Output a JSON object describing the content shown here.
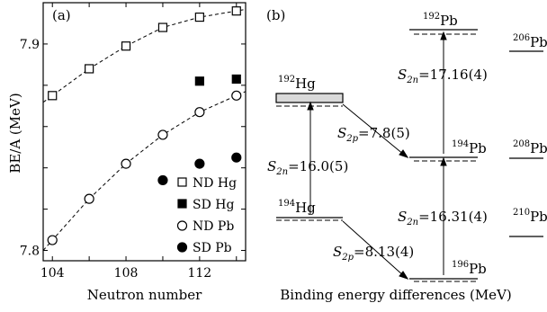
{
  "chart_data": [
    {
      "type": "scatter",
      "panel_label": "(a)",
      "xlabel": "Neutron number",
      "ylabel": "BE/A (MeV)",
      "xlim": [
        103.5,
        114.5
      ],
      "ylim": [
        7.795,
        7.92
      ],
      "xticks": [
        104,
        108,
        112
      ],
      "xticklabels": [
        "104",
        "108",
        "112"
      ],
      "yticks": [
        7.8,
        7.9
      ],
      "yticklabels": [
        "7.8",
        "7.9"
      ],
      "legend_position": "bottom-right",
      "series": [
        {
          "name": "ND Hg",
          "marker": "open-square",
          "connected": true,
          "x": [
            104,
            106,
            108,
            110,
            112,
            114
          ],
          "y": [
            7.875,
            7.888,
            7.899,
            7.908,
            7.913,
            7.916
          ]
        },
        {
          "name": "SD Hg",
          "marker": "filled-square",
          "connected": false,
          "x": [
            112,
            114
          ],
          "y": [
            7.882,
            7.883
          ]
        },
        {
          "name": "ND Pb",
          "marker": "open-circle",
          "connected": true,
          "x": [
            104,
            106,
            108,
            110,
            112,
            114
          ],
          "y": [
            7.805,
            7.825,
            7.842,
            7.856,
            7.867,
            7.875
          ]
        },
        {
          "name": "SD Pb",
          "marker": "filled-circle",
          "connected": false,
          "x": [
            110,
            112,
            114
          ],
          "y": [
            7.834,
            7.842,
            7.845
          ]
        }
      ]
    },
    {
      "type": "diagram",
      "panel_label": "(b)",
      "xlabel": "Binding energy differences (MeV)",
      "nuclei": [
        {
          "mass": "192",
          "element": "Pb"
        },
        {
          "mass": "206",
          "element": "Pb"
        },
        {
          "mass": "192",
          "element": "Hg"
        },
        {
          "mass": "194",
          "element": "Pb"
        },
        {
          "mass": "208",
          "element": "Pb"
        },
        {
          "mass": "194",
          "element": "Hg"
        },
        {
          "mass": "210",
          "element": "Pb"
        },
        {
          "mass": "196",
          "element": "Pb"
        }
      ],
      "energy_labels": [
        {
          "symbol": "S",
          "sub": "2n",
          "value": "=17.16(4)"
        },
        {
          "symbol": "S",
          "sub": "2p",
          "value": "=7.8(5)"
        },
        {
          "symbol": "S",
          "sub": "2n",
          "value": "=16.0(5)"
        },
        {
          "symbol": "S",
          "sub": "2n",
          "value": "=16.31(4)"
        },
        {
          "symbol": "S",
          "sub": "2p",
          "value": "=8.13(4)"
        }
      ]
    }
  ]
}
